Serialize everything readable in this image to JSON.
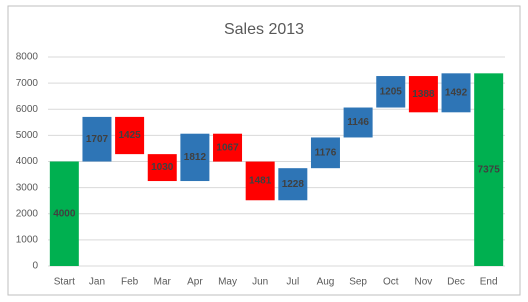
{
  "chart_data": {
    "type": "waterfall",
    "title": "Sales 2013",
    "categories": [
      "Start",
      "Jan",
      "Feb",
      "Mar",
      "Apr",
      "May",
      "Jun",
      "Jul",
      "Aug",
      "Sep",
      "Oct",
      "Nov",
      "Dec",
      "End"
    ],
    "values": [
      4000,
      1707,
      -1425,
      -1030,
      1812,
      -1067,
      -1481,
      1228,
      1176,
      1146,
      1205,
      -1388,
      1492,
      7375
    ],
    "value_labels": [
      "4000",
      "1707",
      "1425",
      "1030",
      "1812",
      "1067",
      "1481",
      "1228",
      "1176",
      "1146",
      "1205",
      "1388",
      "1492",
      "7375"
    ],
    "totals": [
      "Start",
      "End"
    ],
    "colors": {
      "increase": "#2e75b6",
      "decrease": "#ff0000",
      "total": "#00b050"
    },
    "ylim": [
      0,
      8000
    ],
    "yticks": [
      0,
      1000,
      2000,
      3000,
      4000,
      5000,
      6000,
      7000,
      8000
    ],
    "grid": true
  }
}
